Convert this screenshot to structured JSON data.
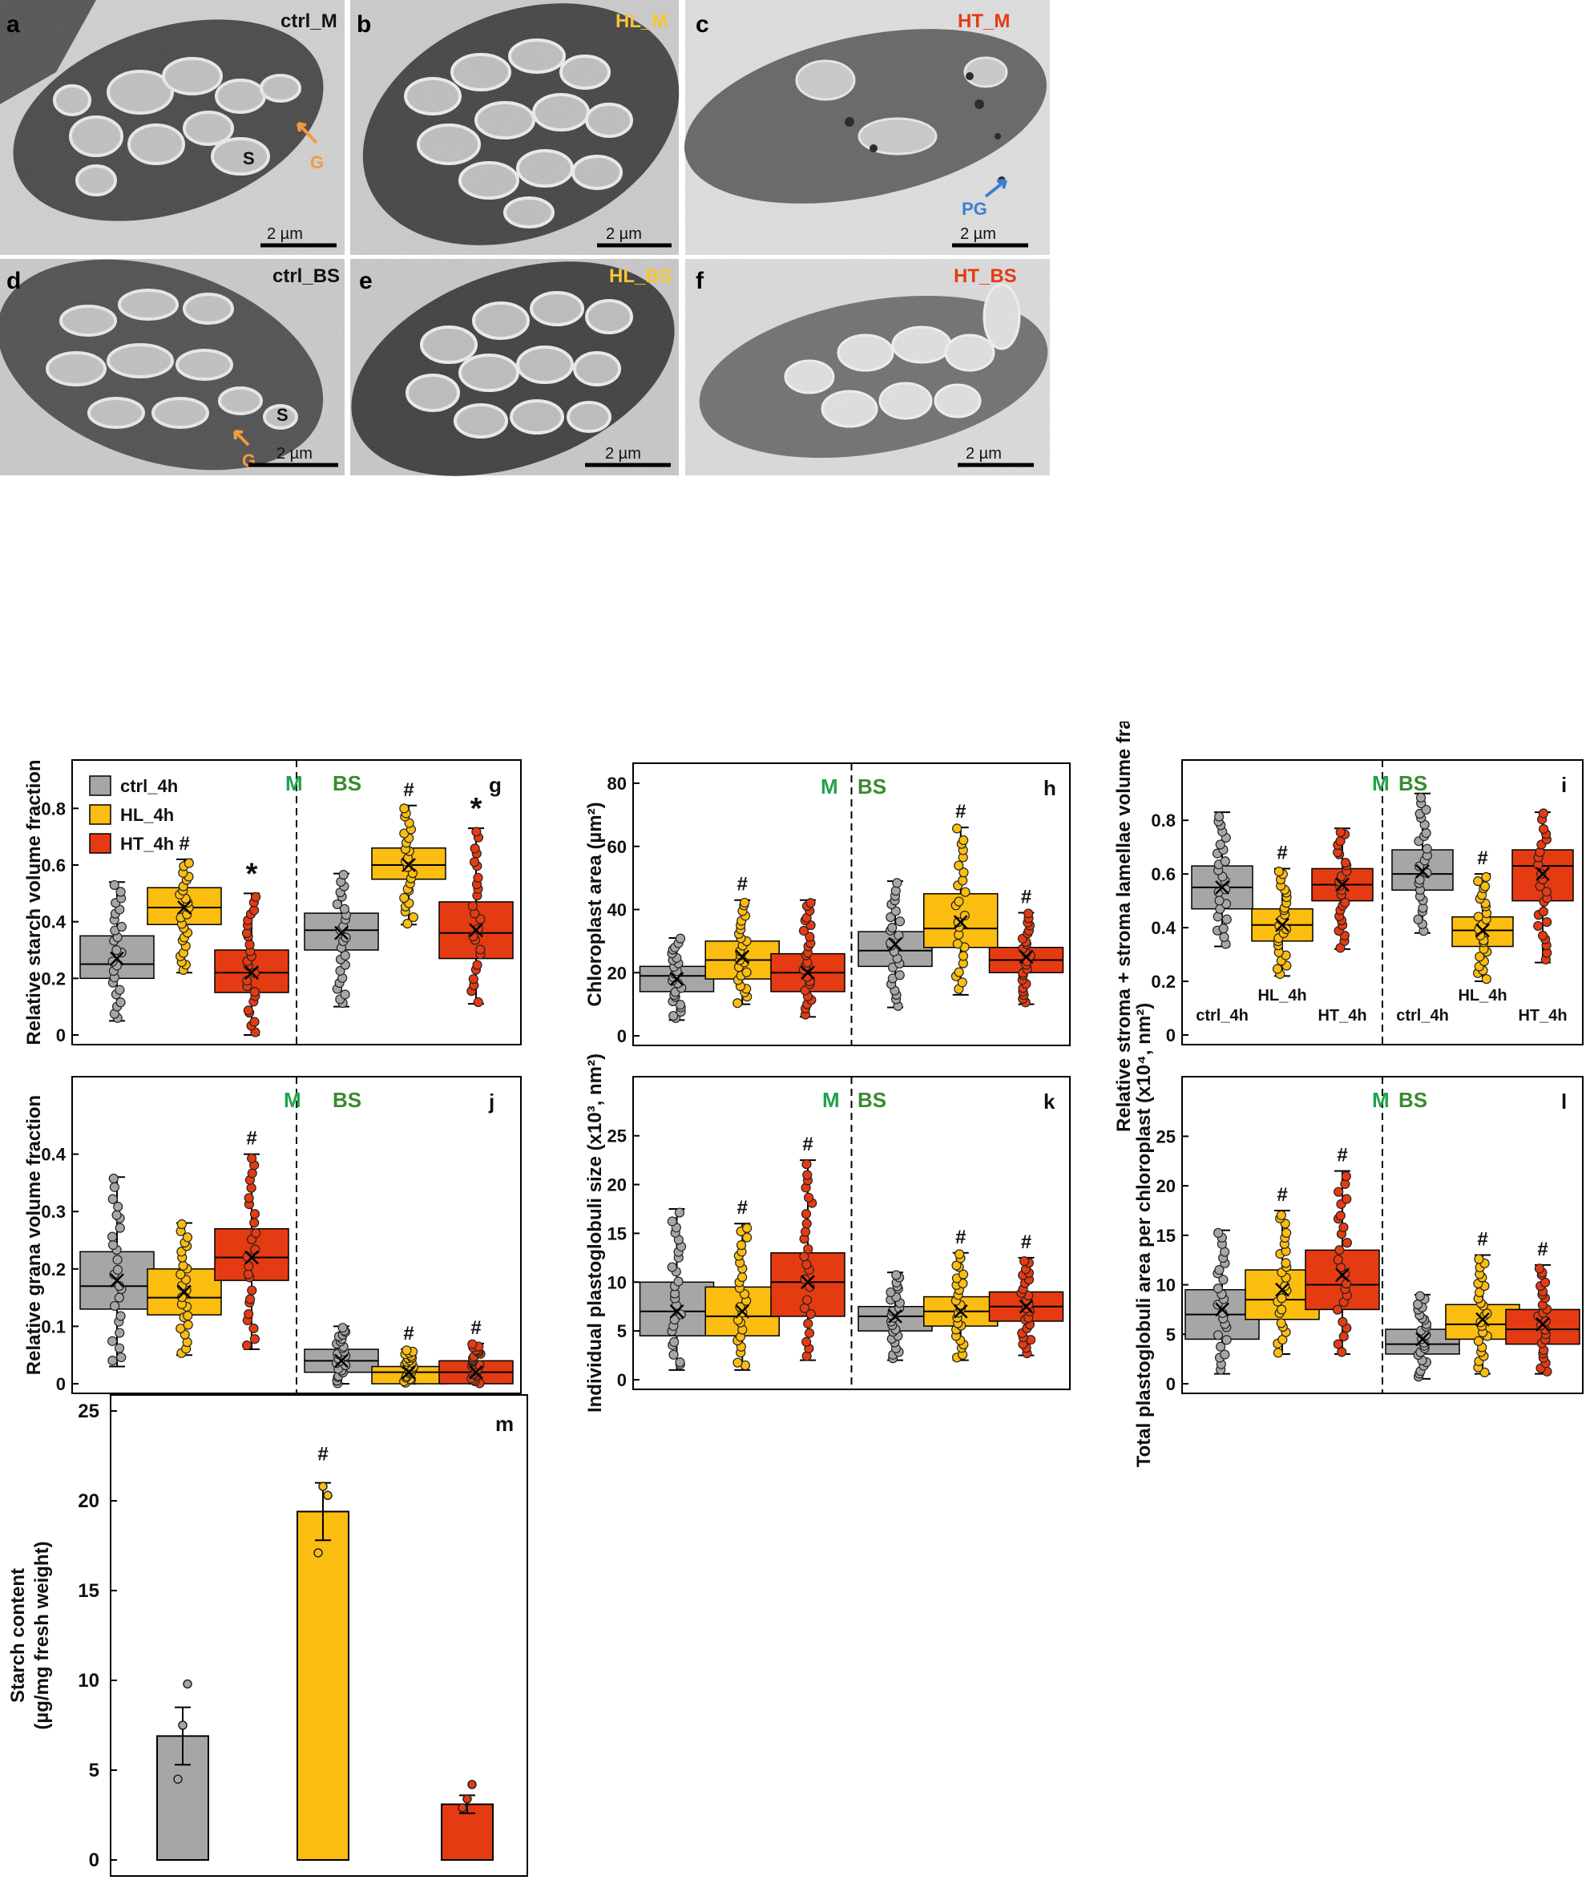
{
  "colors": {
    "ctrl": "#a6a6a6",
    "hl": "#fbbd10",
    "ht": "#e53b12",
    "m_label": "#1fa34a",
    "bs_label": "#3a8a30",
    "ht_panel_label": "#e53b12",
    "hl_panel_label": "#f7c435",
    "arrow_orange": "#f39a3c",
    "arrow_blue": "#3d7fd0"
  },
  "micrographs": [
    {
      "panel": "a",
      "label": "ctrl_M",
      "scale": "2 µm",
      "annotations": [
        "S",
        "G"
      ]
    },
    {
      "panel": "b",
      "label": "HL_M",
      "scale": "2 µm",
      "annotations": []
    },
    {
      "panel": "c",
      "label": "HT_M",
      "scale": "2 µm",
      "annotations": [
        "PG"
      ]
    },
    {
      "panel": "d",
      "label": "ctrl_BS",
      "scale": "2 µm",
      "annotations": [
        "S",
        "G"
      ]
    },
    {
      "panel": "e",
      "label": "HL_BS",
      "scale": "2 µm",
      "annotations": []
    },
    {
      "panel": "f",
      "label": "HT_BS",
      "scale": "2 µm",
      "annotations": []
    }
  ],
  "legend": [
    "ctrl_4h",
    "HL_4h",
    "HT_4h"
  ],
  "chart_data": [
    {
      "panel": "g",
      "type": "box",
      "ylabel": "Relative starch volume fraction",
      "ylim": [
        0,
        0.9
      ],
      "yticks": [
        "0",
        "0.2",
        "0.4",
        "0.6",
        "0.8"
      ],
      "yvals": [
        0,
        0.2,
        0.4,
        0.6,
        0.8
      ],
      "sections": [
        "M",
        "BS"
      ],
      "groups": [
        "ctrl_4h",
        "HL_4h",
        "HT_4h"
      ],
      "M": [
        {
          "q1": 0.2,
          "med": 0.25,
          "q3": 0.35,
          "wlo": 0.05,
          "whi": 0.54,
          "mean": 0.27,
          "mark": ""
        },
        {
          "q1": 0.39,
          "med": 0.45,
          "q3": 0.52,
          "wlo": 0.22,
          "whi": 0.62,
          "mean": 0.45,
          "mark": "#"
        },
        {
          "q1": 0.15,
          "med": 0.22,
          "q3": 0.3,
          "wlo": 0.0,
          "whi": 0.5,
          "mean": 0.22,
          "mark": "*"
        }
      ],
      "BS": [
        {
          "q1": 0.3,
          "med": 0.37,
          "q3": 0.43,
          "wlo": 0.1,
          "whi": 0.57,
          "mean": 0.36,
          "mark": ""
        },
        {
          "q1": 0.55,
          "med": 0.6,
          "q3": 0.66,
          "wlo": 0.39,
          "whi": 0.81,
          "mean": 0.6,
          "mark": "#"
        },
        {
          "q1": 0.27,
          "med": 0.36,
          "q3": 0.47,
          "wlo": 0.11,
          "whi": 0.73,
          "mean": 0.37,
          "mark": "*"
        }
      ]
    },
    {
      "panel": "h",
      "type": "box",
      "ylabel": "Chloroplast area (µm²)",
      "ylim": [
        0,
        80
      ],
      "yticks": [
        "0",
        "20",
        "40",
        "60",
        "80"
      ],
      "yvals": [
        0,
        20,
        40,
        60,
        80
      ],
      "sections": [
        "M",
        "BS"
      ],
      "groups": [
        "ctrl_4h",
        "HL_4h",
        "HT_4h"
      ],
      "M": [
        {
          "q1": 14,
          "med": 19,
          "q3": 22,
          "wlo": 5,
          "whi": 31,
          "mean": 18,
          "mark": ""
        },
        {
          "q1": 18,
          "med": 24,
          "q3": 30,
          "wlo": 10,
          "whi": 43,
          "mean": 25,
          "mark": "#"
        },
        {
          "q1": 14,
          "med": 20,
          "q3": 26,
          "wlo": 6,
          "whi": 43,
          "mean": 20,
          "mark": ""
        }
      ],
      "BS": [
        {
          "q1": 22,
          "med": 27,
          "q3": 33,
          "wlo": 9,
          "whi": 49,
          "mean": 29,
          "mark": ""
        },
        {
          "q1": 28,
          "med": 34,
          "q3": 45,
          "wlo": 13,
          "whi": 66,
          "mean": 36,
          "mark": "#"
        },
        {
          "q1": 20,
          "med": 24,
          "q3": 28,
          "wlo": 10,
          "whi": 39,
          "mean": 25,
          "mark": "#"
        }
      ]
    },
    {
      "panel": "i",
      "type": "box",
      "ylabel": "Relative stroma + stroma lamellae volume fraction",
      "ylim": [
        0,
        0.95
      ],
      "yticks": [
        "0",
        "0.2",
        "0.4",
        "0.6",
        "0.8"
      ],
      "yvals": [
        0,
        0.2,
        0.4,
        0.6,
        0.8
      ],
      "sections": [
        "M",
        "BS"
      ],
      "groups": [
        "ctrl_4h",
        "HL_4h",
        "HT_4h"
      ],
      "M": [
        {
          "q1": 0.47,
          "med": 0.55,
          "q3": 0.63,
          "wlo": 0.33,
          "whi": 0.83,
          "mean": 0.55,
          "mark": ""
        },
        {
          "q1": 0.35,
          "med": 0.41,
          "q3": 0.47,
          "wlo": 0.22,
          "whi": 0.62,
          "mean": 0.41,
          "mark": "#"
        },
        {
          "q1": 0.5,
          "med": 0.56,
          "q3": 0.62,
          "wlo": 0.32,
          "whi": 0.77,
          "mean": 0.56,
          "mark": ""
        }
      ],
      "BS": [
        {
          "q1": 0.54,
          "med": 0.6,
          "q3": 0.69,
          "wlo": 0.38,
          "whi": 0.9,
          "mean": 0.61,
          "mark": ""
        },
        {
          "q1": 0.33,
          "med": 0.39,
          "q3": 0.44,
          "wlo": 0.2,
          "whi": 0.6,
          "mean": 0.39,
          "mark": "#"
        },
        {
          "q1": 0.5,
          "med": 0.63,
          "q3": 0.69,
          "wlo": 0.27,
          "whi": 0.83,
          "mean": 0.6,
          "mark": ""
        }
      ],
      "axis_group_labels": [
        "ctrl_4h",
        "HL_4h",
        "HT_4h"
      ]
    },
    {
      "panel": "j",
      "type": "box",
      "ylabel": "Relative grana volume fraction",
      "ylim": [
        0,
        0.5
      ],
      "yticks": [
        "0",
        "0.1",
        "0.2",
        "0.3",
        "0.4"
      ],
      "yvals": [
        0,
        0.1,
        0.2,
        0.3,
        0.4
      ],
      "sections": [
        "M",
        "BS"
      ],
      "groups": [
        "ctrl_4h",
        "HL_4h",
        "HT_4h"
      ],
      "M": [
        {
          "q1": 0.13,
          "med": 0.17,
          "q3": 0.23,
          "wlo": 0.03,
          "whi": 0.36,
          "mean": 0.18,
          "mark": ""
        },
        {
          "q1": 0.12,
          "med": 0.15,
          "q3": 0.2,
          "wlo": 0.05,
          "whi": 0.28,
          "mean": 0.16,
          "mark": ""
        },
        {
          "q1": 0.18,
          "med": 0.22,
          "q3": 0.27,
          "wlo": 0.06,
          "whi": 0.4,
          "mean": 0.22,
          "mark": "#"
        }
      ],
      "BS": [
        {
          "q1": 0.02,
          "med": 0.04,
          "q3": 0.06,
          "wlo": 0.0,
          "whi": 0.1,
          "mean": 0.04,
          "mark": ""
        },
        {
          "q1": 0.0,
          "med": 0.02,
          "q3": 0.03,
          "wlo": 0.0,
          "whi": 0.06,
          "mean": 0.02,
          "mark": "#"
        },
        {
          "q1": 0.0,
          "med": 0.02,
          "q3": 0.04,
          "wlo": 0.0,
          "whi": 0.07,
          "mean": 0.02,
          "mark": "#"
        }
      ]
    },
    {
      "panel": "k",
      "type": "box",
      "ylabel": "Individual plastoglobuli size (x10³, nm²)",
      "ylim": [
        0,
        29
      ],
      "yticks": [
        "0",
        "5",
        "10",
        "15",
        "20",
        "25"
      ],
      "yvals": [
        0,
        5,
        10,
        15,
        20,
        25
      ],
      "sections": [
        "M",
        "BS"
      ],
      "groups": [
        "ctrl_4h",
        "HL_4h",
        "HT_4h"
      ],
      "M": [
        {
          "q1": 4.5,
          "med": 7,
          "q3": 10,
          "wlo": 1,
          "whi": 17.5,
          "mean": 7,
          "mark": ""
        },
        {
          "q1": 4.5,
          "med": 6.5,
          "q3": 9.5,
          "wlo": 1,
          "whi": 16,
          "mean": 7,
          "mark": "#"
        },
        {
          "q1": 6.5,
          "med": 10,
          "q3": 13,
          "wlo": 2,
          "whi": 22.5,
          "mean": 10,
          "mark": "#"
        }
      ],
      "BS": [
        {
          "q1": 5,
          "med": 6.5,
          "q3": 7.5,
          "wlo": 2,
          "whi": 11,
          "mean": 6.5,
          "mark": ""
        },
        {
          "q1": 5.5,
          "med": 7,
          "q3": 8.5,
          "wlo": 2,
          "whi": 13,
          "mean": 7,
          "mark": "#"
        },
        {
          "q1": 6,
          "med": 7.5,
          "q3": 9,
          "wlo": 2.5,
          "whi": 12.5,
          "mean": 7.5,
          "mark": "#"
        }
      ]
    },
    {
      "panel": "l",
      "type": "box",
      "ylabel": "Total plastoglobuli area per chloroplast (x10⁴, nm²)",
      "ylim": [
        0,
        29
      ],
      "yticks": [
        "0",
        "5",
        "10",
        "15",
        "20",
        "25"
      ],
      "yvals": [
        0,
        5,
        10,
        15,
        20,
        25
      ],
      "sections": [
        "M",
        "BS"
      ],
      "groups": [
        "ctrl_4h",
        "HL_4h",
        "HT_4h"
      ],
      "M": [
        {
          "q1": 4.5,
          "med": 7,
          "q3": 9.5,
          "wlo": 1,
          "whi": 15.5,
          "mean": 7.5,
          "mark": ""
        },
        {
          "q1": 6.5,
          "med": 8.5,
          "q3": 11.5,
          "wlo": 3,
          "whi": 17.5,
          "mean": 9.5,
          "mark": "#"
        },
        {
          "q1": 7.5,
          "med": 10,
          "q3": 13.5,
          "wlo": 3,
          "whi": 21.5,
          "mean": 11,
          "mark": "#"
        }
      ],
      "BS": [
        {
          "q1": 3,
          "med": 4,
          "q3": 5.5,
          "wlo": 0.5,
          "whi": 9,
          "mean": 4.5,
          "mark": ""
        },
        {
          "q1": 4.5,
          "med": 6,
          "q3": 8,
          "wlo": 1,
          "whi": 13,
          "mean": 6.5,
          "mark": "#"
        },
        {
          "q1": 4,
          "med": 5.5,
          "q3": 7.5,
          "wlo": 1,
          "whi": 12,
          "mean": 6,
          "mark": "#"
        }
      ]
    },
    {
      "panel": "m",
      "type": "bar",
      "ylabel": "Starch content (µg/mg fresh weight)",
      "ylabel_lines": [
        "Starch content",
        "(µg/mg fresh weight)"
      ],
      "ylim": [
        0,
        25
      ],
      "yticks": [
        "0",
        "5",
        "10",
        "15",
        "20",
        "25"
      ],
      "yvals": [
        0,
        5,
        10,
        15,
        20,
        25
      ],
      "categories": [
        "ctrl_4h",
        "HL_4h",
        "HT_4h"
      ],
      "values": [
        6.9,
        19.4,
        3.1
      ],
      "errors": [
        1.6,
        1.6,
        0.5
      ],
      "marks": [
        "",
        "#",
        ""
      ],
      "points": [
        [
          4.5,
          7.5,
          9.8
        ],
        [
          17.1,
          20.8,
          20.3
        ],
        [
          2.9,
          3.4,
          4.2
        ]
      ]
    }
  ]
}
